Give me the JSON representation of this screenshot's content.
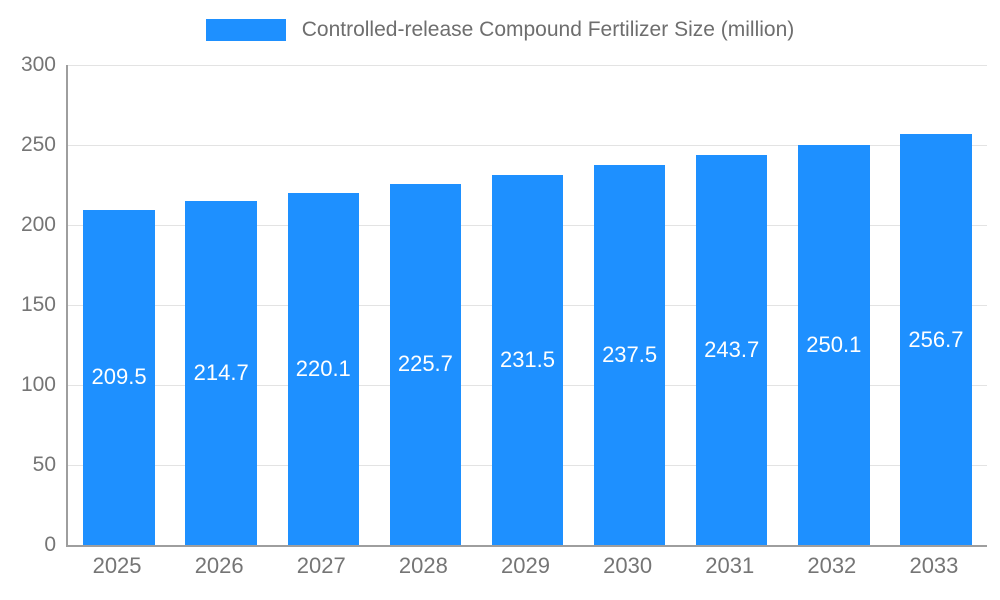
{
  "chart_data": {
    "type": "bar",
    "title": "Controlled-release Compound Fertilizer Size (million)",
    "categories": [
      "2025",
      "2026",
      "2027",
      "2028",
      "2029",
      "2030",
      "2031",
      "2032",
      "2033"
    ],
    "values": [
      209.5,
      214.7,
      220.1,
      225.7,
      231.5,
      237.5,
      243.7,
      250.1,
      256.7
    ],
    "xlabel": "",
    "ylabel": "",
    "ylim": [
      0,
      300
    ],
    "yticks": [
      0,
      50,
      100,
      150,
      200,
      250,
      300
    ],
    "grid": true,
    "legend_position": "top",
    "bar_color": "#1e90ff",
    "value_label_color": "#ffffff",
    "axis_text_color": "#757575"
  }
}
